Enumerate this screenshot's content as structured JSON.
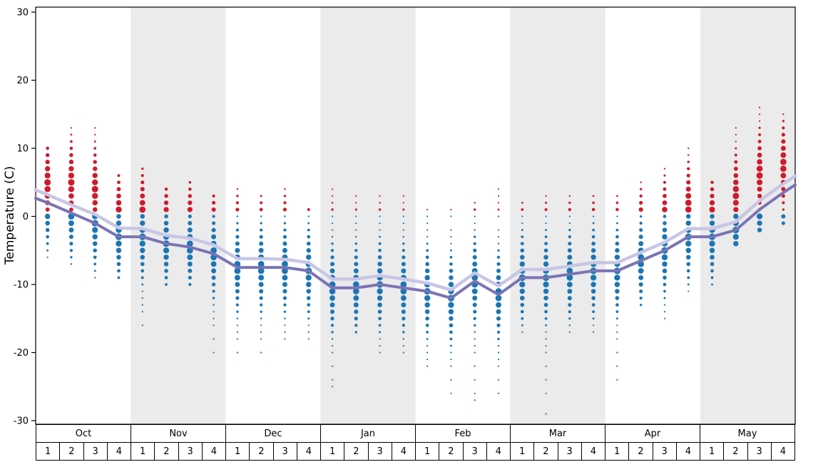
{
  "y_axis": {
    "title": "Temperature (C)",
    "ticks": [
      30,
      20,
      10,
      0,
      -10,
      -20,
      -30
    ]
  },
  "x_axis": {
    "months": [
      {
        "label": "Oct"
      },
      {
        "label": "Nov"
      },
      {
        "label": "Dec"
      },
      {
        "label": "Jan"
      },
      {
        "label": "Feb"
      },
      {
        "label": "Mar"
      },
      {
        "label": "Apr"
      },
      {
        "label": "May"
      }
    ],
    "week_labels": [
      "1",
      "2",
      "3",
      "4"
    ]
  },
  "chart_data": {
    "type": "scatter",
    "title": "",
    "xlabel": "",
    "ylabel": "Temperature (C)",
    "ylim": [
      -31,
      31
    ],
    "y_ticks": [
      30,
      20,
      10,
      0,
      -10,
      -20,
      -30
    ],
    "grid": false,
    "legend": "none",
    "shaded_months": [
      "Nov",
      "Jan",
      "Mar",
      "May"
    ],
    "colors": {
      "red_dots": "#cf1b2b",
      "blue_dots": "#1b76b4",
      "line_upper": "#c9c5e6",
      "line_lower": "#7a73b5",
      "band": "#ebebeb",
      "axis": "#000000"
    },
    "series": [
      {
        "name": "upper-average-line",
        "color_key": "line_upper",
        "values": [
          3.2,
          1.7,
          0.3,
          -1.7,
          -1.8,
          -2.8,
          -3.2,
          -4.2,
          -6.2,
          -6.2,
          -6.3,
          -6.8,
          -9.2,
          -9.2,
          -8.7,
          -9.2,
          -9.8,
          -10.8,
          -8.3,
          -10.2,
          -7.8,
          -7.8,
          -7.3,
          -6.8,
          -6.8,
          -5.3,
          -3.8,
          -1.8,
          -1.8,
          -0.8,
          2.3,
          4.8
        ]
      },
      {
        "name": "lower-average-line",
        "color_key": "line_lower",
        "values": [
          2,
          0.5,
          -1,
          -3,
          -3,
          -4,
          -4.5,
          -5.5,
          -7.5,
          -7.5,
          -7.5,
          -8,
          -10.5,
          -10.5,
          -10,
          -10.5,
          -11,
          -12,
          -9.5,
          -11.5,
          -9,
          -9,
          -8.5,
          -8,
          -8,
          -6.5,
          -5,
          -3,
          -3,
          -2,
          1,
          3.5
        ]
      }
    ],
    "weeks": [
      {
        "month": "Oct",
        "week": 1,
        "line_upper": 3.2,
        "line_lower": 2,
        "red_top": 10,
        "blue_bottom": -6
      },
      {
        "month": "Oct",
        "week": 2,
        "line_upper": 1.7,
        "line_lower": 0.5,
        "red_top": 13,
        "blue_bottom": -7
      },
      {
        "month": "Oct",
        "week": 3,
        "line_upper": 0.3,
        "line_lower": -1,
        "red_top": 13,
        "blue_bottom": -9
      },
      {
        "month": "Oct",
        "week": 4,
        "line_upper": -1.7,
        "line_lower": -3,
        "red_top": 6,
        "blue_bottom": -9
      },
      {
        "month": "Nov",
        "week": 1,
        "line_upper": -1.8,
        "line_lower": -3,
        "red_top": 7,
        "blue_bottom": -16
      },
      {
        "month": "Nov",
        "week": 2,
        "line_upper": -2.8,
        "line_lower": -4,
        "red_top": 4,
        "blue_bottom": -10
      },
      {
        "month": "Nov",
        "week": 3,
        "line_upper": -3.2,
        "line_lower": -4.5,
        "red_top": 5,
        "blue_bottom": -10
      },
      {
        "month": "Nov",
        "week": 4,
        "line_upper": -4.2,
        "line_lower": -5.5,
        "red_top": 3,
        "blue_bottom": -20
      },
      {
        "month": "Dec",
        "week": 1,
        "line_upper": -6.2,
        "line_lower": -7.5,
        "red_top": 4,
        "blue_bottom": -20
      },
      {
        "month": "Dec",
        "week": 2,
        "line_upper": -6.2,
        "line_lower": -7.5,
        "red_top": 3,
        "blue_bottom": -20
      },
      {
        "month": "Dec",
        "week": 3,
        "line_upper": -6.3,
        "line_lower": -7.5,
        "red_top": 4,
        "blue_bottom": -18
      },
      {
        "month": "Dec",
        "week": 4,
        "line_upper": -6.8,
        "line_lower": -8,
        "red_top": 1,
        "blue_bottom": -18
      },
      {
        "month": "Jan",
        "week": 1,
        "line_upper": -9.2,
        "line_lower": -10.5,
        "red_top": 4,
        "blue_bottom": -25
      },
      {
        "month": "Jan",
        "week": 2,
        "line_upper": -9.2,
        "line_lower": -10.5,
        "red_top": 3,
        "blue_bottom": -17
      },
      {
        "month": "Jan",
        "week": 3,
        "line_upper": -8.7,
        "line_lower": -10,
        "red_top": 3,
        "blue_bottom": -20
      },
      {
        "month": "Jan",
        "week": 4,
        "line_upper": -9.2,
        "line_lower": -10.5,
        "red_top": 3,
        "blue_bottom": -20
      },
      {
        "month": "Feb",
        "week": 1,
        "line_upper": -9.8,
        "line_lower": -11,
        "red_top": 1,
        "blue_bottom": -22
      },
      {
        "month": "Feb",
        "week": 2,
        "line_upper": -10.8,
        "line_lower": -12,
        "red_top": 1,
        "blue_bottom": -26
      },
      {
        "month": "Feb",
        "week": 3,
        "line_upper": -8.3,
        "line_lower": -9.5,
        "red_top": 2,
        "blue_bottom": -27
      },
      {
        "month": "Feb",
        "week": 4,
        "line_upper": -10.2,
        "line_lower": -11.5,
        "red_top": 4,
        "blue_bottom": -26
      },
      {
        "month": "Mar",
        "week": 1,
        "line_upper": -7.8,
        "line_lower": -9,
        "red_top": 2,
        "blue_bottom": -17
      },
      {
        "month": "Mar",
        "week": 2,
        "line_upper": -7.8,
        "line_lower": -9,
        "red_top": 3,
        "blue_bottom": -29
      },
      {
        "month": "Mar",
        "week": 3,
        "line_upper": -7.3,
        "line_lower": -8.5,
        "red_top": 3,
        "blue_bottom": -17
      },
      {
        "month": "Mar",
        "week": 4,
        "line_upper": -6.8,
        "line_lower": -8,
        "red_top": 3,
        "blue_bottom": -17
      },
      {
        "month": "Apr",
        "week": 1,
        "line_upper": -6.8,
        "line_lower": -8,
        "red_top": 3,
        "blue_bottom": -24
      },
      {
        "month": "Apr",
        "week": 2,
        "line_upper": -5.3,
        "line_lower": -6.5,
        "red_top": 5,
        "blue_bottom": -13
      },
      {
        "month": "Apr",
        "week": 3,
        "line_upper": -3.8,
        "line_lower": -5,
        "red_top": 7,
        "blue_bottom": -15
      },
      {
        "month": "Apr",
        "week": 4,
        "line_upper": -1.8,
        "line_lower": -3,
        "red_top": 10,
        "blue_bottom": -11
      },
      {
        "month": "May",
        "week": 1,
        "line_upper": -1.8,
        "line_lower": -3,
        "red_top": 5,
        "blue_bottom": -10
      },
      {
        "month": "May",
        "week": 2,
        "line_upper": -0.8,
        "line_lower": -2,
        "red_top": 13,
        "blue_bottom": -4
      },
      {
        "month": "May",
        "week": 3,
        "line_upper": 2.3,
        "line_lower": 1,
        "red_top": 16,
        "blue_bottom": -2
      },
      {
        "month": "May",
        "week": 4,
        "line_upper": 4.8,
        "line_lower": 3.5,
        "red_top": 15,
        "blue_bottom": -1
      }
    ]
  }
}
